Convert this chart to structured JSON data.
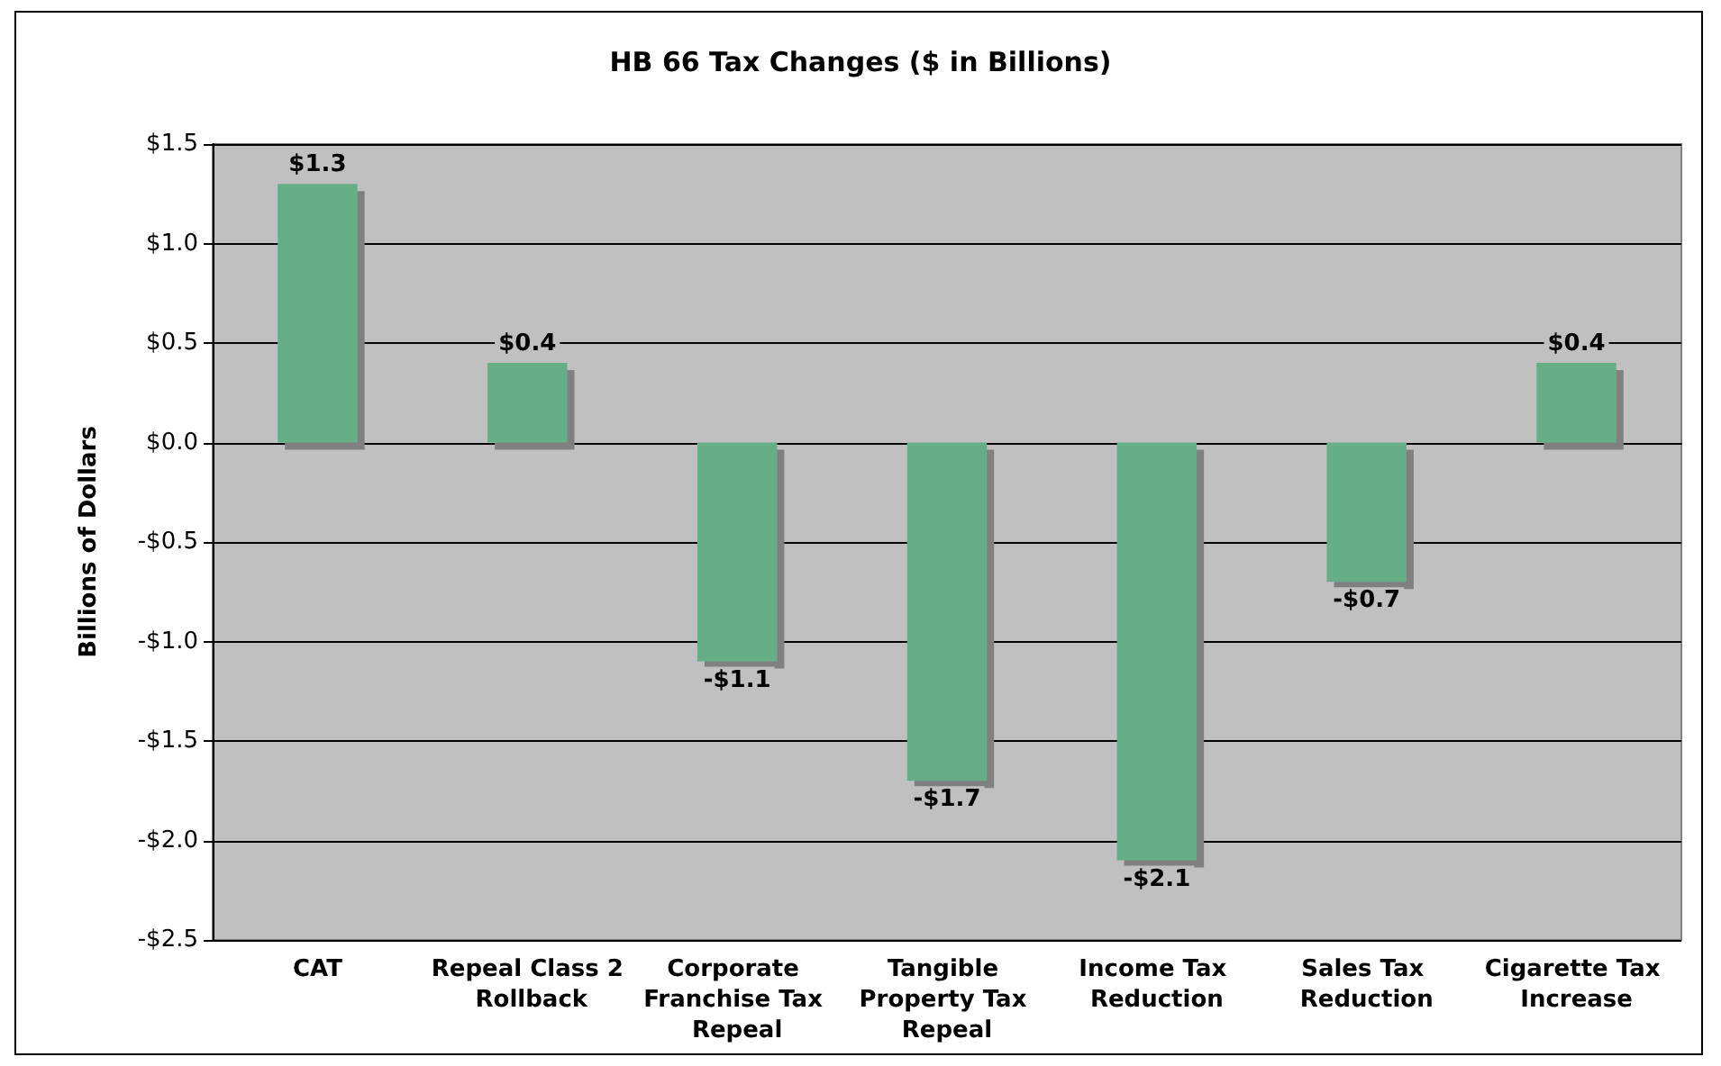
{
  "chart_data": {
    "type": "bar",
    "title": "HB 66 Tax Changes ($ in Billions)",
    "ylabel": "Billions of Dollars",
    "categories": [
      "CAT",
      "Repeal Class 2 Rollback",
      "Corporate Franchise Tax Repeal",
      "Tangible Property Tax Repeal",
      "Income Tax Reduction",
      "Sales Tax Reduction",
      "Cigarette Tax Increase"
    ],
    "values": [
      1.3,
      0.4,
      -1.1,
      -1.7,
      -2.1,
      -0.7,
      0.4
    ],
    "value_labels": [
      "$1.3",
      "$0.4",
      "-$1.1",
      "-$1.7",
      "-$2.1",
      "-$0.7",
      "$0.4"
    ],
    "color": "#66ae88",
    "ylim": [
      -2.5,
      1.5
    ],
    "yticks": [
      {
        "value": -2.5,
        "label": "-$2.5"
      },
      {
        "value": -2,
        "label": "-$2.0"
      },
      {
        "value": -1.5,
        "label": "-$1.5"
      },
      {
        "value": -1,
        "label": "-$1.0"
      },
      {
        "value": -0.5,
        "label": "-$0.5"
      },
      {
        "value": 0,
        "label": "$0.0"
      },
      {
        "value": 0.5,
        "label": "$0.5"
      },
      {
        "value": 1,
        "label": "$1.0"
      },
      {
        "value": 1.5,
        "label": "$1.5"
      }
    ],
    "grid": "y"
  }
}
